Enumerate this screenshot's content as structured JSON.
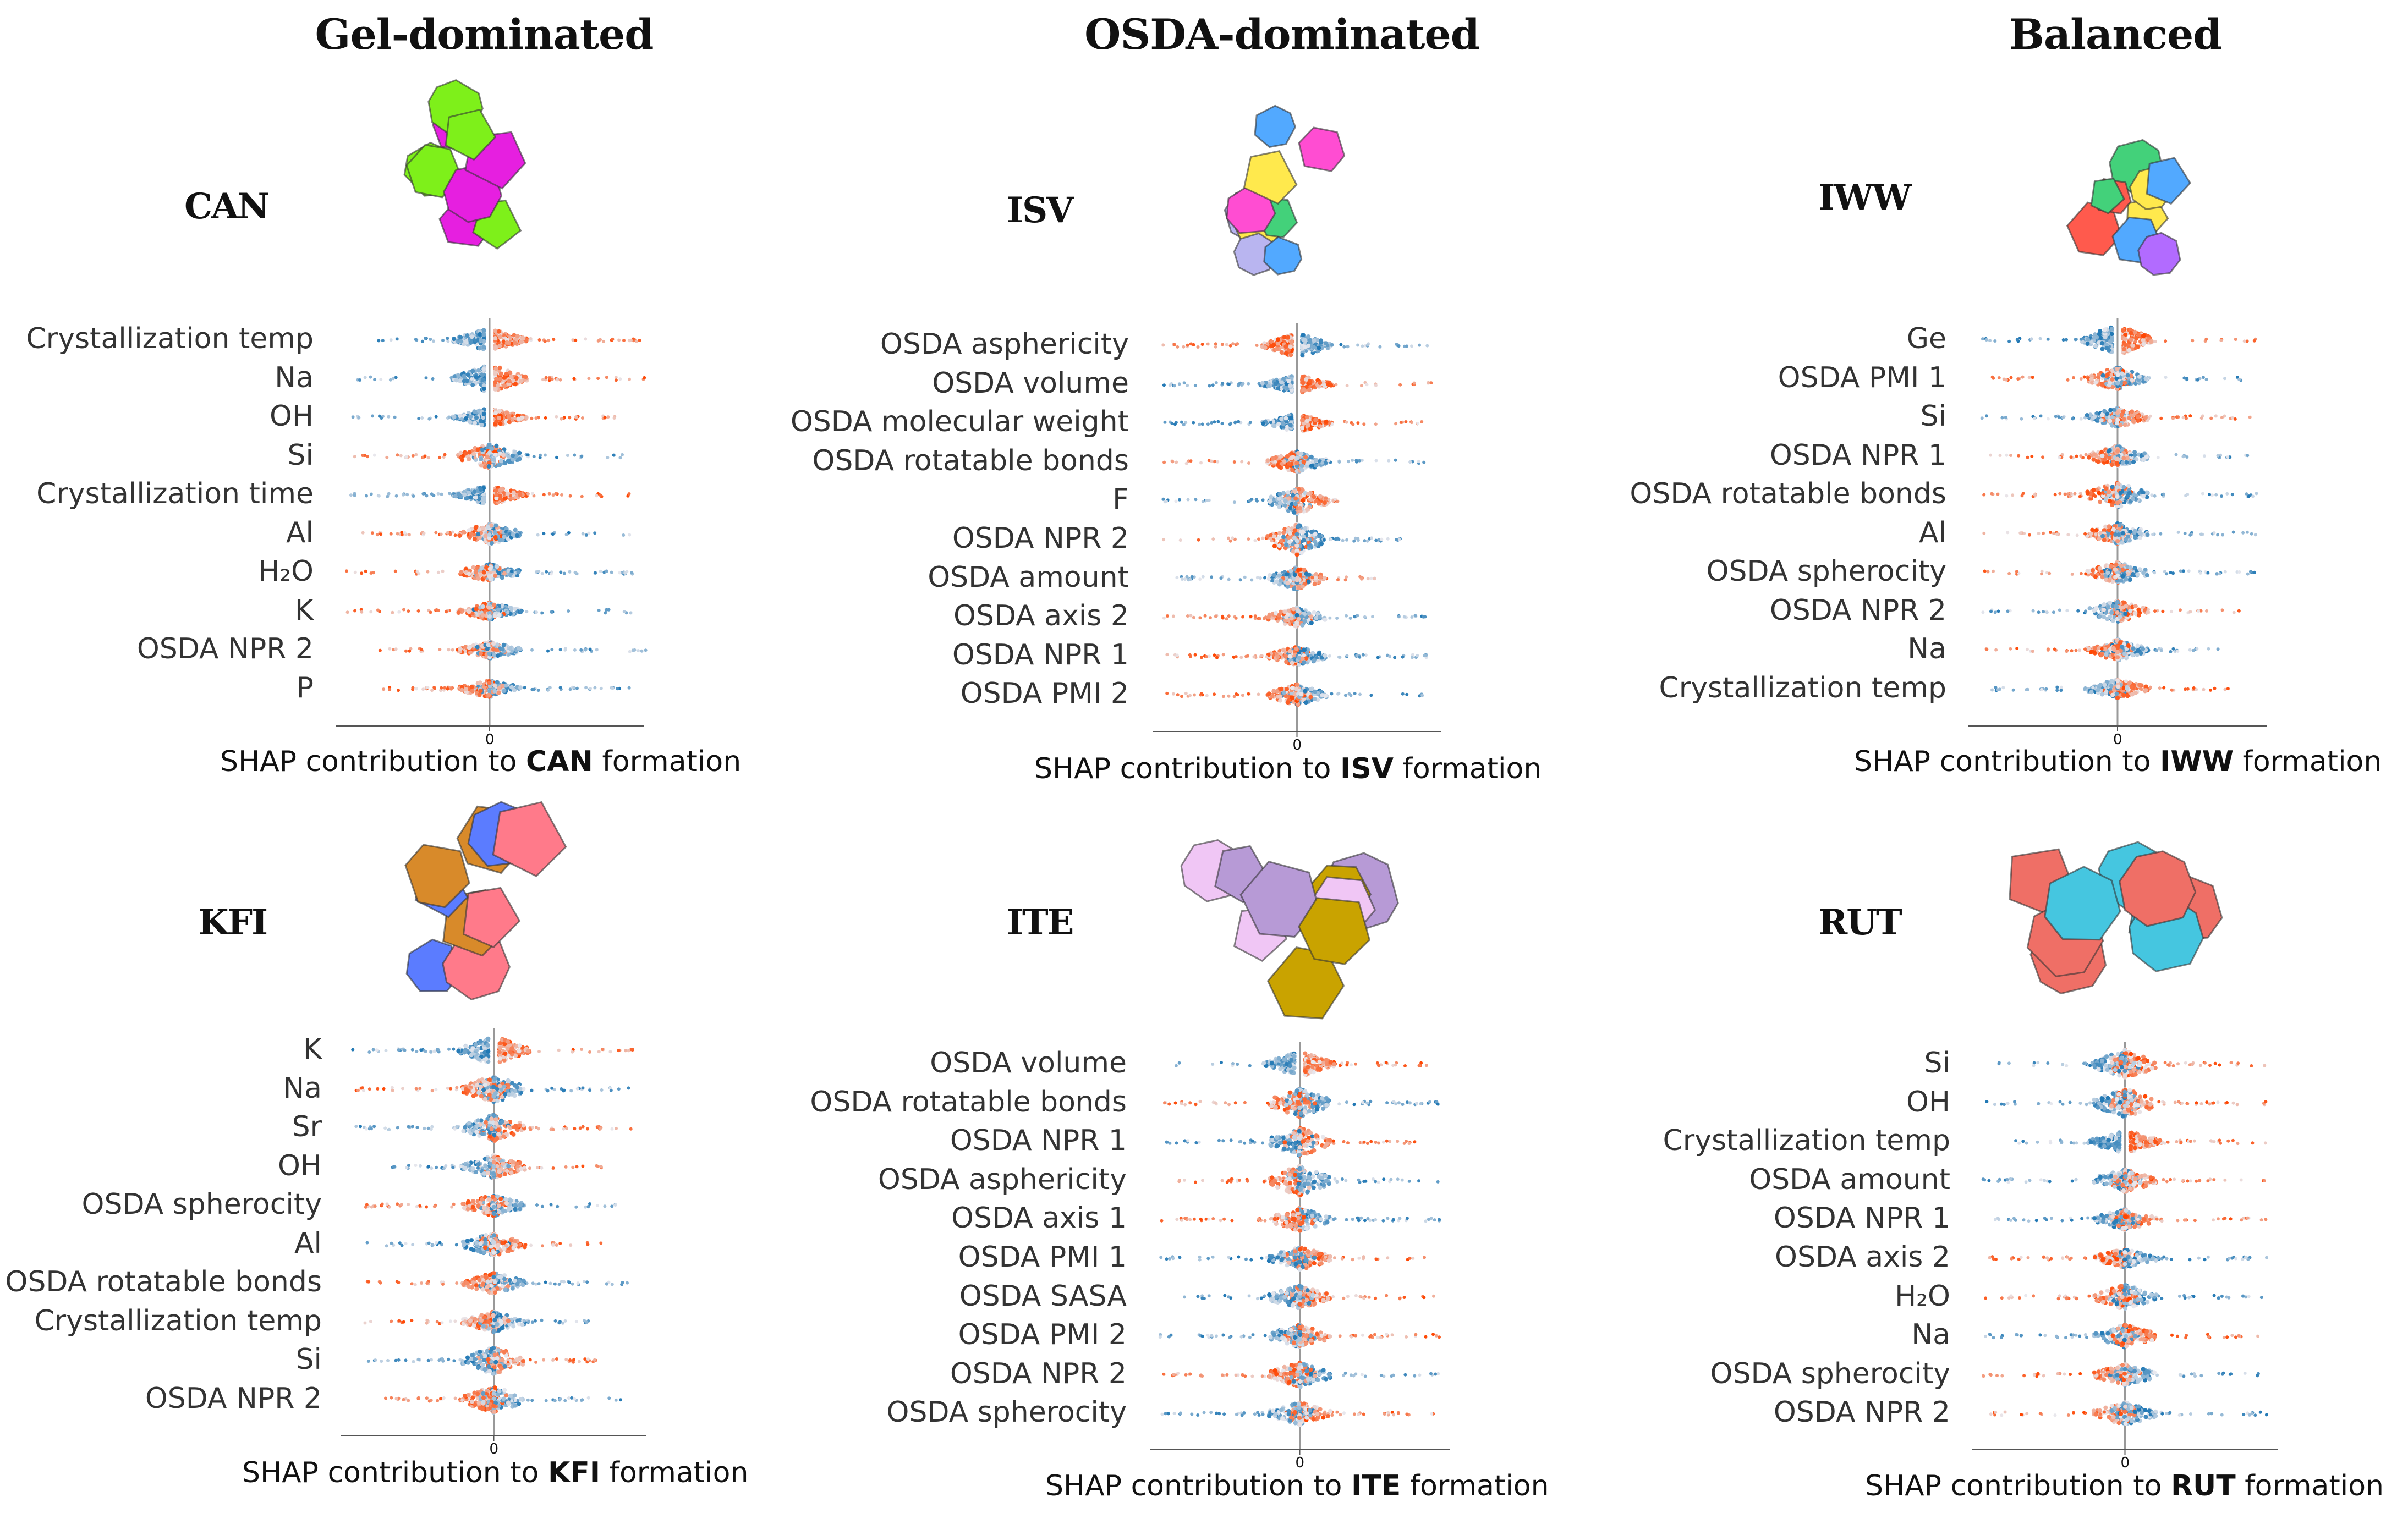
{
  "columns": [
    {
      "id": "gel",
      "title": "Gel-dominated"
    },
    {
      "id": "osda",
      "title": "OSDA-dominated"
    },
    {
      "id": "bal",
      "title": "Balanced"
    }
  ],
  "colors": {
    "low_feature": "#1f77b4",
    "high_feature": "#ff4500",
    "mid_feature": "#e8e8ee",
    "zero_line": "#999999",
    "axis": "#555555"
  },
  "chart_data": [
    {
      "type": "scatter",
      "subtype": "shap-beeswarm",
      "framework": "CAN",
      "structure_colors": [
        "#7ef01a",
        "#e61fe0"
      ],
      "features": [
        "Crystallization temp",
        "Na",
        "OH",
        "Si",
        "Crystallization time",
        "Al",
        "H2O",
        "K",
        "OSDA NPR 2",
        "P"
      ],
      "feature_labels": [
        "Crystallization temp",
        "Na",
        "OH",
        "Si",
        "Crystallization time",
        "Al",
        "H₂O",
        "K",
        "OSDA NPR 2",
        "P"
      ],
      "x_tick_labels": [
        "0"
      ],
      "xlabel_prefix": "SHAP contribution to ",
      "xlabel_bold": "CAN",
      "xlabel_suffix": " formation",
      "xlim": [
        -2.2,
        2.2
      ],
      "rows": [
        {
          "low_dir": -1,
          "high_dir": 1,
          "neg_extent": 2.0,
          "pos_extent": 2.2,
          "dense": 0.6,
          "split": true
        },
        {
          "low_dir": -1,
          "high_dir": 1,
          "neg_extent": 2.0,
          "pos_extent": 2.2,
          "dense": 0.9,
          "split": true
        },
        {
          "low_dir": -1,
          "high_dir": 1,
          "neg_extent": 2.0,
          "pos_extent": 1.8,
          "dense": 0.4,
          "split": true
        },
        {
          "low_dir": 1,
          "high_dir": -1,
          "neg_extent": 2.0,
          "pos_extent": 2.0,
          "dense": 0.7,
          "split": false
        },
        {
          "low_dir": -1,
          "high_dir": 1,
          "neg_extent": 2.0,
          "pos_extent": 2.0,
          "dense": 0.4,
          "split": true
        },
        {
          "low_dir": 1,
          "high_dir": -1,
          "neg_extent": 1.8,
          "pos_extent": 2.0,
          "dense": 0.5,
          "split": false
        },
        {
          "low_dir": 1,
          "high_dir": -1,
          "neg_extent": 2.0,
          "pos_extent": 2.0,
          "dense": 0.3,
          "split": false
        },
        {
          "low_dir": 1,
          "high_dir": -1,
          "neg_extent": 2.0,
          "pos_extent": 2.0,
          "dense": 0.3,
          "split": false
        },
        {
          "low_dir": 1,
          "high_dir": -1,
          "neg_extent": 1.5,
          "pos_extent": 2.2,
          "dense": 0.3,
          "split": false
        },
        {
          "low_dir": 1,
          "high_dir": -1,
          "neg_extent": 1.5,
          "pos_extent": 2.0,
          "dense": 0.3,
          "split": false
        }
      ]
    },
    {
      "type": "scatter",
      "subtype": "shap-beeswarm",
      "framework": "ISV",
      "structure_colors": [
        "#b9b5f0",
        "#ff4dd2",
        "#52a9ff",
        "#ffe94d",
        "#43d17a"
      ],
      "features": [
        "OSDA asphericity",
        "OSDA volume",
        "OSDA molecular weight",
        "OSDA rotatable bonds",
        "F",
        "OSDA NPR 2",
        "OSDA amount",
        "OSDA axis 2",
        "OSDA NPR 1",
        "OSDA PMI 2"
      ],
      "feature_labels": [
        "OSDA asphericity",
        "OSDA volume",
        "OSDA molecular weight",
        "OSDA rotatable bonds",
        "F",
        "OSDA NPR 2",
        "OSDA amount",
        "OSDA axis 2",
        "OSDA NPR 1",
        "OSDA PMI 2"
      ],
      "x_tick_labels": [
        "0"
      ],
      "xlabel_prefix": "SHAP contribution to ",
      "xlabel_bold": "ISV",
      "xlabel_suffix": " formation",
      "xlim": [
        -2.2,
        2.2
      ],
      "rows": [
        {
          "low_dir": 1,
          "high_dir": -1,
          "neg_extent": 2.0,
          "pos_extent": 2.0,
          "dense": 0.7,
          "split": true
        },
        {
          "low_dir": -1,
          "high_dir": 1,
          "neg_extent": 2.0,
          "pos_extent": 2.0,
          "dense": 0.4,
          "split": true
        },
        {
          "low_dir": -1,
          "high_dir": 1,
          "neg_extent": 2.0,
          "pos_extent": 2.0,
          "dense": 0.4,
          "split": true
        },
        {
          "low_dir": 1,
          "high_dir": -1,
          "neg_extent": 2.0,
          "pos_extent": 2.0,
          "dense": 0.5,
          "split": false
        },
        {
          "low_dir": -1,
          "high_dir": 1,
          "neg_extent": 2.0,
          "pos_extent": 0.5,
          "dense": 0.8,
          "split": false
        },
        {
          "low_dir": 1,
          "high_dir": -1,
          "neg_extent": 2.0,
          "pos_extent": 1.5,
          "dense": 1.0,
          "split": false
        },
        {
          "low_dir": -1,
          "high_dir": 1,
          "neg_extent": 2.0,
          "pos_extent": 1.5,
          "dense": 0.6,
          "split": false
        },
        {
          "low_dir": 1,
          "high_dir": -1,
          "neg_extent": 2.0,
          "pos_extent": 2.0,
          "dense": 0.4,
          "split": false
        },
        {
          "low_dir": 1,
          "high_dir": -1,
          "neg_extent": 2.0,
          "pos_extent": 2.0,
          "dense": 0.4,
          "split": false
        },
        {
          "low_dir": 1,
          "high_dir": -1,
          "neg_extent": 2.0,
          "pos_extent": 2.0,
          "dense": 0.5,
          "split": false
        }
      ]
    },
    {
      "type": "scatter",
      "subtype": "shap-beeswarm",
      "framework": "IWW",
      "structure_colors": [
        "#ff5a4d",
        "#43d17a",
        "#ffe94d",
        "#52a9ff",
        "#b26bff"
      ],
      "features": [
        "Ge",
        "OSDA PMI 1",
        "Si",
        "OSDA NPR 1",
        "OSDA rotatable bonds",
        "Al",
        "OSDA spherocity",
        "OSDA NPR 2",
        "Na",
        "Crystallization temp"
      ],
      "feature_labels": [
        "Ge",
        "OSDA PMI 1",
        "Si",
        "OSDA NPR 1",
        "OSDA rotatable bonds",
        "Al",
        "OSDA spherocity",
        "OSDA NPR 2",
        "Na",
        "Crystallization temp"
      ],
      "x_tick_labels": [
        "0"
      ],
      "xlabel_prefix": "SHAP contribution to ",
      "xlabel_bold": "IWW",
      "xlabel_suffix": " formation",
      "xlim": [
        -2.2,
        2.2
      ],
      "rows": [
        {
          "low_dir": -1,
          "high_dir": 1,
          "neg_extent": 2.0,
          "pos_extent": 2.0,
          "dense": 1.0,
          "split": true
        },
        {
          "low_dir": 1,
          "high_dir": -1,
          "neg_extent": 2.0,
          "pos_extent": 2.0,
          "dense": 0.6,
          "split": false
        },
        {
          "low_dir": -1,
          "high_dir": 1,
          "neg_extent": 2.0,
          "pos_extent": 2.0,
          "dense": 0.4,
          "split": false
        },
        {
          "low_dir": 1,
          "high_dir": -1,
          "neg_extent": 2.0,
          "pos_extent": 2.0,
          "dense": 0.5,
          "split": false
        },
        {
          "low_dir": 1,
          "high_dir": -1,
          "neg_extent": 2.0,
          "pos_extent": 2.0,
          "dense": 0.7,
          "split": false
        },
        {
          "low_dir": 1,
          "high_dir": -1,
          "neg_extent": 2.0,
          "pos_extent": 2.0,
          "dense": 0.5,
          "split": false
        },
        {
          "low_dir": 1,
          "high_dir": -1,
          "neg_extent": 2.0,
          "pos_extent": 2.0,
          "dense": 0.5,
          "split": false
        },
        {
          "low_dir": -1,
          "high_dir": 1,
          "neg_extent": 2.0,
          "pos_extent": 2.0,
          "dense": 0.5,
          "split": false
        },
        {
          "low_dir": 1,
          "high_dir": -1,
          "neg_extent": 2.0,
          "pos_extent": 1.5,
          "dense": 0.5,
          "split": false
        },
        {
          "low_dir": -1,
          "high_dir": 1,
          "neg_extent": 1.8,
          "pos_extent": 1.8,
          "dense": 0.4,
          "split": false
        }
      ]
    },
    {
      "type": "scatter",
      "subtype": "shap-beeswarm",
      "framework": "KFI",
      "structure_colors": [
        "#5b7cff",
        "#ff7a8a",
        "#d88a2a"
      ],
      "features": [
        "K",
        "Na",
        "Sr",
        "OH",
        "OSDA spherocity",
        "Al",
        "OSDA rotatable bonds",
        "Crystallization temp",
        "Si",
        "OSDA NPR 2"
      ],
      "feature_labels": [
        "K",
        "Na",
        "Sr",
        "OH",
        "OSDA spherocity",
        "Al",
        "OSDA rotatable bonds",
        "Crystallization temp",
        "Si",
        "OSDA NPR 2"
      ],
      "x_tick_labels": [
        "0"
      ],
      "xlabel_prefix": "SHAP contribution to ",
      "xlabel_bold": "KFI",
      "xlabel_suffix": " formation",
      "xlim": [
        -2.2,
        2.2
      ],
      "rows": [
        {
          "low_dir": -1,
          "high_dir": 1,
          "neg_extent": 2.0,
          "pos_extent": 2.2,
          "dense": 0.9,
          "split": true
        },
        {
          "low_dir": 1,
          "high_dir": -1,
          "neg_extent": 2.0,
          "pos_extent": 2.0,
          "dense": 0.8,
          "split": false
        },
        {
          "low_dir": -1,
          "high_dir": 1,
          "neg_extent": 2.0,
          "pos_extent": 2.0,
          "dense": 0.8,
          "split": false
        },
        {
          "low_dir": -1,
          "high_dir": 1,
          "neg_extent": 1.5,
          "pos_extent": 1.5,
          "dense": 0.6,
          "split": false
        },
        {
          "low_dir": 1,
          "high_dir": -1,
          "neg_extent": 1.8,
          "pos_extent": 1.8,
          "dense": 0.5,
          "split": false
        },
        {
          "low_dir": -1,
          "high_dir": 1,
          "neg_extent": 1.8,
          "pos_extent": 1.5,
          "dense": 0.6,
          "split": false
        },
        {
          "low_dir": 1,
          "high_dir": -1,
          "neg_extent": 1.8,
          "pos_extent": 2.0,
          "dense": 0.5,
          "split": false
        },
        {
          "low_dir": 1,
          "high_dir": -1,
          "neg_extent": 1.8,
          "pos_extent": 1.5,
          "dense": 0.5,
          "split": false
        },
        {
          "low_dir": -1,
          "high_dir": 1,
          "neg_extent": 1.8,
          "pos_extent": 1.5,
          "dense": 0.8,
          "split": false
        },
        {
          "low_dir": 1,
          "high_dir": -1,
          "neg_extent": 1.5,
          "pos_extent": 1.8,
          "dense": 0.8,
          "split": false
        }
      ]
    },
    {
      "type": "scatter",
      "subtype": "shap-beeswarm",
      "framework": "ITE",
      "structure_colors": [
        "#f0c6f5",
        "#b79ad6",
        "#c9a300"
      ],
      "features": [
        "OSDA volume",
        "OSDA rotatable bonds",
        "OSDA NPR 1",
        "OSDA asphericity",
        "OSDA axis 1",
        "OSDA PMI 1",
        "OSDA SASA",
        "OSDA PMI 2",
        "OSDA NPR 2",
        "OSDA spherocity"
      ],
      "feature_labels": [
        "OSDA volume",
        "OSDA rotatable bonds",
        "OSDA NPR 1",
        "OSDA asphericity",
        "OSDA axis 1",
        "OSDA PMI 1",
        "OSDA SASA",
        "OSDA PMI 2",
        "OSDA NPR 2",
        "OSDA spherocity"
      ],
      "x_tick_labels": [
        "0"
      ],
      "xlabel_prefix": "SHAP contribution to ",
      "xlabel_bold": "ITE",
      "xlabel_suffix": " formation",
      "xlim": [
        -2.2,
        2.2
      ],
      "rows": [
        {
          "low_dir": -1,
          "high_dir": 1,
          "neg_extent": 2.0,
          "pos_extent": 2.0,
          "dense": 0.7,
          "split": true
        },
        {
          "low_dir": 1,
          "high_dir": -1,
          "neg_extent": 2.0,
          "pos_extent": 2.0,
          "dense": 0.9,
          "split": false
        },
        {
          "low_dir": -1,
          "high_dir": 1,
          "neg_extent": 2.0,
          "pos_extent": 2.0,
          "dense": 0.9,
          "split": false
        },
        {
          "low_dir": 1,
          "high_dir": -1,
          "neg_extent": 2.0,
          "pos_extent": 2.0,
          "dense": 1.0,
          "split": false
        },
        {
          "low_dir": 1,
          "high_dir": -1,
          "neg_extent": 2.0,
          "pos_extent": 2.0,
          "dense": 0.6,
          "split": false
        },
        {
          "low_dir": -1,
          "high_dir": 1,
          "neg_extent": 2.0,
          "pos_extent": 2.0,
          "dense": 0.6,
          "split": false
        },
        {
          "low_dir": -1,
          "high_dir": 1,
          "neg_extent": 2.0,
          "pos_extent": 2.0,
          "dense": 0.6,
          "split": false
        },
        {
          "low_dir": -1,
          "high_dir": 1,
          "neg_extent": 2.0,
          "pos_extent": 2.0,
          "dense": 0.6,
          "split": false
        },
        {
          "low_dir": 1,
          "high_dir": -1,
          "neg_extent": 2.0,
          "pos_extent": 2.0,
          "dense": 0.7,
          "split": false
        },
        {
          "low_dir": -1,
          "high_dir": 1,
          "neg_extent": 2.0,
          "pos_extent": 2.0,
          "dense": 0.6,
          "split": false
        }
      ]
    },
    {
      "type": "scatter",
      "subtype": "shap-beeswarm",
      "framework": "RUT",
      "structure_colors": [
        "#ef6f66",
        "#45c6e0"
      ],
      "features": [
        "Si",
        "OH",
        "Crystallization temp",
        "OSDA amount",
        "OSDA NPR 1",
        "OSDA axis 2",
        "H2O",
        "Na",
        "OSDA spherocity",
        "OSDA NPR 2"
      ],
      "feature_labels": [
        "Si",
        "OH",
        "Crystallization temp",
        "OSDA amount",
        "OSDA NPR 1",
        "OSDA axis 2",
        "H₂O",
        "Na",
        "OSDA spherocity",
        "OSDA NPR 2"
      ],
      "x_tick_labels": [
        "0"
      ],
      "xlabel_prefix": "SHAP contribution to ",
      "xlabel_bold": "RUT",
      "xlabel_suffix": " formation",
      "xlim": [
        -2.2,
        2.2
      ],
      "rows": [
        {
          "low_dir": -1,
          "high_dir": 1,
          "neg_extent": 2.0,
          "pos_extent": 2.0,
          "dense": 0.9,
          "split": false
        },
        {
          "low_dir": -1,
          "high_dir": 1,
          "neg_extent": 2.0,
          "pos_extent": 2.0,
          "dense": 0.9,
          "split": false
        },
        {
          "low_dir": -1,
          "high_dir": 1,
          "neg_extent": 1.5,
          "pos_extent": 2.0,
          "dense": 0.6,
          "split": true
        },
        {
          "low_dir": -1,
          "high_dir": 1,
          "neg_extent": 2.0,
          "pos_extent": 2.0,
          "dense": 0.6,
          "split": false
        },
        {
          "low_dir": -1,
          "high_dir": 1,
          "neg_extent": 2.0,
          "pos_extent": 2.0,
          "dense": 0.5,
          "split": false
        },
        {
          "low_dir": 1,
          "high_dir": -1,
          "neg_extent": 2.0,
          "pos_extent": 2.0,
          "dense": 0.4,
          "split": false
        },
        {
          "low_dir": 1,
          "high_dir": -1,
          "neg_extent": 2.0,
          "pos_extent": 2.0,
          "dense": 0.7,
          "split": false
        },
        {
          "low_dir": -1,
          "high_dir": 1,
          "neg_extent": 2.0,
          "pos_extent": 2.0,
          "dense": 0.6,
          "split": false
        },
        {
          "low_dir": 1,
          "high_dir": -1,
          "neg_extent": 2.0,
          "pos_extent": 2.0,
          "dense": 0.5,
          "split": false
        },
        {
          "low_dir": 1,
          "high_dir": -1,
          "neg_extent": 2.0,
          "pos_extent": 2.0,
          "dense": 0.6,
          "split": false
        }
      ]
    }
  ]
}
